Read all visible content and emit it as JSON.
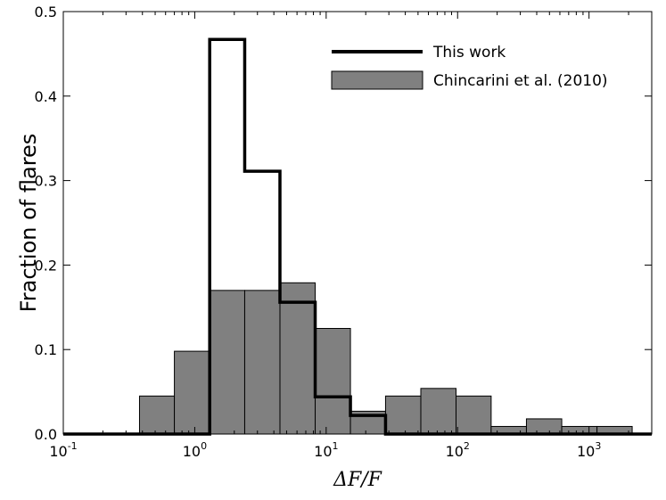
{
  "chart_data": {
    "type": "bar",
    "xscale": "log",
    "xlim": [
      "1e-1",
      "3e3"
    ],
    "ylim": [
      0,
      0.5
    ],
    "ylabel": "Fraction of flares",
    "xlabel": "ΔF/F",
    "legend_position": "top-right",
    "x_ticks": [
      {
        "base": "10",
        "exp": "-1"
      },
      {
        "base": "10",
        "exp": "0"
      },
      {
        "base": "10",
        "exp": "1"
      },
      {
        "base": "10",
        "exp": "2"
      },
      {
        "base": "10",
        "exp": "3"
      }
    ],
    "y_ticks": [
      "0.0",
      "0.1",
      "0.2",
      "0.3",
      "0.4",
      "0.5"
    ],
    "series": [
      {
        "name": "Chincarini et al. (2010)",
        "style": "filled-bars",
        "color": "#808080",
        "bin_edges": [
          0.38,
          0.7,
          1.3,
          2.4,
          4.45,
          8.25,
          15.3,
          28.3,
          52.5,
          97.3,
          180,
          334,
          620,
          1150,
          2130
        ],
        "values": [
          0.045,
          0.098,
          0.17,
          0.17,
          0.179,
          0.125,
          0.027,
          0.045,
          0.054,
          0.045,
          0.009,
          0.018,
          0.009,
          0.009
        ]
      },
      {
        "name": "This work",
        "style": "step-outline",
        "color": "#000000",
        "bin_edges": [
          1.3,
          2.4,
          4.45,
          8.25,
          15.3,
          28.3
        ],
        "values": [
          0.467,
          0.311,
          0.156,
          0.044,
          0.022
        ]
      }
    ]
  }
}
